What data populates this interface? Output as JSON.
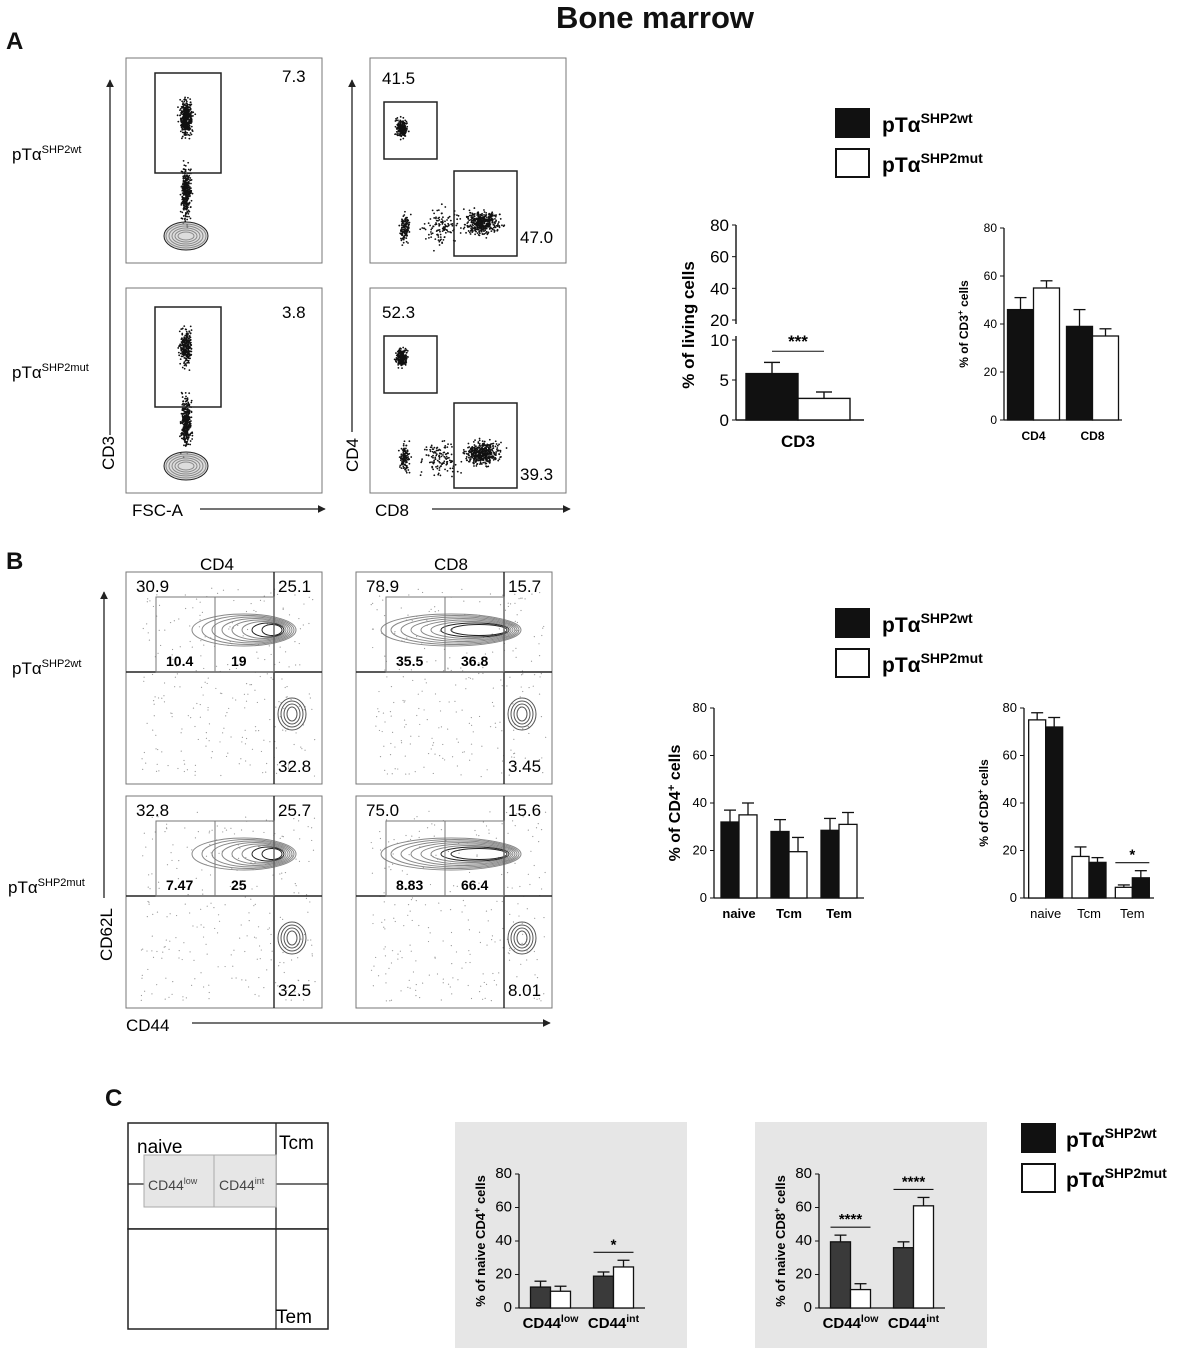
{
  "figure": {
    "title": "Bone marrow"
  },
  "panels": {
    "a": "A",
    "b": "B",
    "c": "C"
  },
  "legend": {
    "wt_base": "pTα",
    "wt_sup": "SHP2wt",
    "mut_base": "pTα",
    "mut_sup": "SHP2mut",
    "wt_color": "#111111",
    "mut_color": "#ffffff"
  },
  "flow_a": {
    "row_labels": [
      {
        "base": "pTα",
        "sup": "SHP2wt"
      },
      {
        "base": "pTα",
        "sup": "SHP2mut"
      }
    ],
    "cd3_axis": {
      "y": "CD3",
      "x": "FSC-A"
    },
    "cd4cd8_axis": {
      "y": "CD4",
      "x": "CD8"
    },
    "cd3_values": [
      "7.3",
      "3.8"
    ],
    "cd4_values": [
      "41.5",
      "52.3"
    ],
    "cd8_values": [
      "47.0",
      "39.3"
    ]
  },
  "flow_b": {
    "col_labels": [
      "CD4",
      "CD8"
    ],
    "axis": {
      "y": "CD62L",
      "x": "CD44"
    },
    "row_labels": [
      {
        "base": "pTα",
        "sup": "SHP2wt"
      },
      {
        "base": "pTα",
        "sup": "SHP2mut"
      }
    ],
    "plots": [
      {
        "tl": "30.9",
        "tr": "25.1",
        "g1": "10.4",
        "g2": "19",
        "br": "32.8"
      },
      {
        "tl": "78.9",
        "tr": "15.7",
        "g1": "35.5",
        "g2": "36.8",
        "br": "3.45"
      },
      {
        "tl": "32.8",
        "tr": "25.7",
        "g1": "7.47",
        "g2": "25",
        "br": "32.5"
      },
      {
        "tl": "75.0",
        "tr": "15.6",
        "g1": "8.83",
        "g2": "66.4",
        "br": "8.01"
      }
    ]
  },
  "schematic": {
    "naive": "naive",
    "tcm": "Tcm",
    "tem": "Tem",
    "low_base": "CD44",
    "low_sup": "low",
    "int_base": "CD44",
    "int_sup": "int"
  },
  "chart_data": [
    {
      "id": "a1",
      "type": "bar",
      "ylabel": "% of living cells",
      "categories": [
        "CD3"
      ],
      "yticks_lower": [
        0,
        5,
        10
      ],
      "yticks_upper": [
        20,
        40,
        60,
        80
      ],
      "broken_axis": true,
      "series": [
        {
          "name": "pTαSHP2wt",
          "values": [
            5.8
          ],
          "errors": [
            1.4
          ]
        },
        {
          "name": "pTαSHP2mut",
          "values": [
            2.7
          ],
          "errors": [
            0.8
          ]
        }
      ],
      "significance": [
        {
          "category": "CD3",
          "label": "***"
        }
      ]
    },
    {
      "id": "a2",
      "type": "bar",
      "ylabel": "% of CD3+ cells",
      "ylabel_parts": {
        "pre": "% of CD3",
        "sup": "+",
        "post": " cells"
      },
      "categories": [
        "CD4",
        "CD8"
      ],
      "ylim": [
        0,
        80
      ],
      "yticks": [
        0,
        20,
        40,
        60,
        80
      ],
      "series": [
        {
          "name": "pTαSHP2wt",
          "values": [
            46,
            39
          ],
          "errors": [
            5,
            7
          ]
        },
        {
          "name": "pTαSHP2mut",
          "values": [
            55,
            35
          ],
          "errors": [
            3,
            3
          ]
        }
      ]
    },
    {
      "id": "b1",
      "type": "bar",
      "ylabel": "% of CD4+ cells",
      "ylabel_parts": {
        "pre": "% of CD4",
        "sup": "+",
        "post": " cells"
      },
      "categories": [
        "naive",
        "Tcm",
        "Tem"
      ],
      "ylim": [
        0,
        80
      ],
      "yticks": [
        0,
        20,
        40,
        60,
        80
      ],
      "series": [
        {
          "name": "pTαSHP2wt",
          "values": [
            32,
            28,
            28.5
          ],
          "errors": [
            5,
            5,
            5
          ]
        },
        {
          "name": "pTαSHP2mut",
          "values": [
            35,
            19.5,
            31
          ],
          "errors": [
            5,
            6,
            5
          ]
        }
      ]
    },
    {
      "id": "b2",
      "type": "bar",
      "ylabel": "% of CD8+ cells",
      "ylabel_parts": {
        "pre": "% of CD8",
        "sup": "+",
        "post": " cells"
      },
      "categories": [
        "naive",
        "Tcm",
        "Tem"
      ],
      "ylim": [
        0,
        80
      ],
      "yticks": [
        0,
        20,
        40,
        60,
        80
      ],
      "series": [
        {
          "name": "pTαSHP2mut",
          "values": [
            75,
            17.5,
            4.5
          ],
          "errors": [
            3,
            4,
            1
          ]
        },
        {
          "name": "pTαSHP2wt",
          "values": [
            72,
            15,
            8.5
          ],
          "errors": [
            4,
            2,
            3
          ]
        }
      ],
      "significance": [
        {
          "category": "Tem",
          "label": "*"
        }
      ]
    },
    {
      "id": "c1",
      "type": "bar",
      "ylabel": "% of naive CD4+ cells",
      "ylabel_parts": {
        "pre": "% of naive CD4",
        "sup": "+",
        "post": " cells"
      },
      "categories": [
        {
          "base": "CD44",
          "sup": "low"
        },
        {
          "base": "CD44",
          "sup": "int"
        }
      ],
      "ylim": [
        0,
        80
      ],
      "yticks": [
        0,
        20,
        40,
        60,
        80
      ],
      "series": [
        {
          "name": "pTαSHP2wt",
          "values": [
            12.5,
            19
          ],
          "errors": [
            3.5,
            2.5
          ]
        },
        {
          "name": "pTαSHP2mut",
          "values": [
            10,
            24.5
          ],
          "errors": [
            3,
            4
          ]
        }
      ],
      "significance": [
        {
          "category": "CD44int",
          "label": "*"
        }
      ]
    },
    {
      "id": "c2",
      "type": "bar",
      "ylabel": "% of naive CD8+ cells",
      "ylabel_parts": {
        "pre": "% of naive CD8",
        "sup": "+",
        "post": " cells"
      },
      "categories": [
        {
          "base": "CD44",
          "sup": "low"
        },
        {
          "base": "CD44",
          "sup": "int"
        }
      ],
      "ylim": [
        0,
        80
      ],
      "yticks": [
        0,
        20,
        40,
        60,
        80
      ],
      "series": [
        {
          "name": "pTαSHP2wt",
          "values": [
            39.5,
            36
          ],
          "errors": [
            4,
            3.5
          ]
        },
        {
          "name": "pTαSHP2mut",
          "values": [
            11,
            61
          ],
          "errors": [
            3.5,
            5
          ]
        }
      ],
      "significance": [
        {
          "category": "CD44low",
          "label": "****"
        },
        {
          "category": "CD44int",
          "label": "****"
        }
      ]
    }
  ]
}
